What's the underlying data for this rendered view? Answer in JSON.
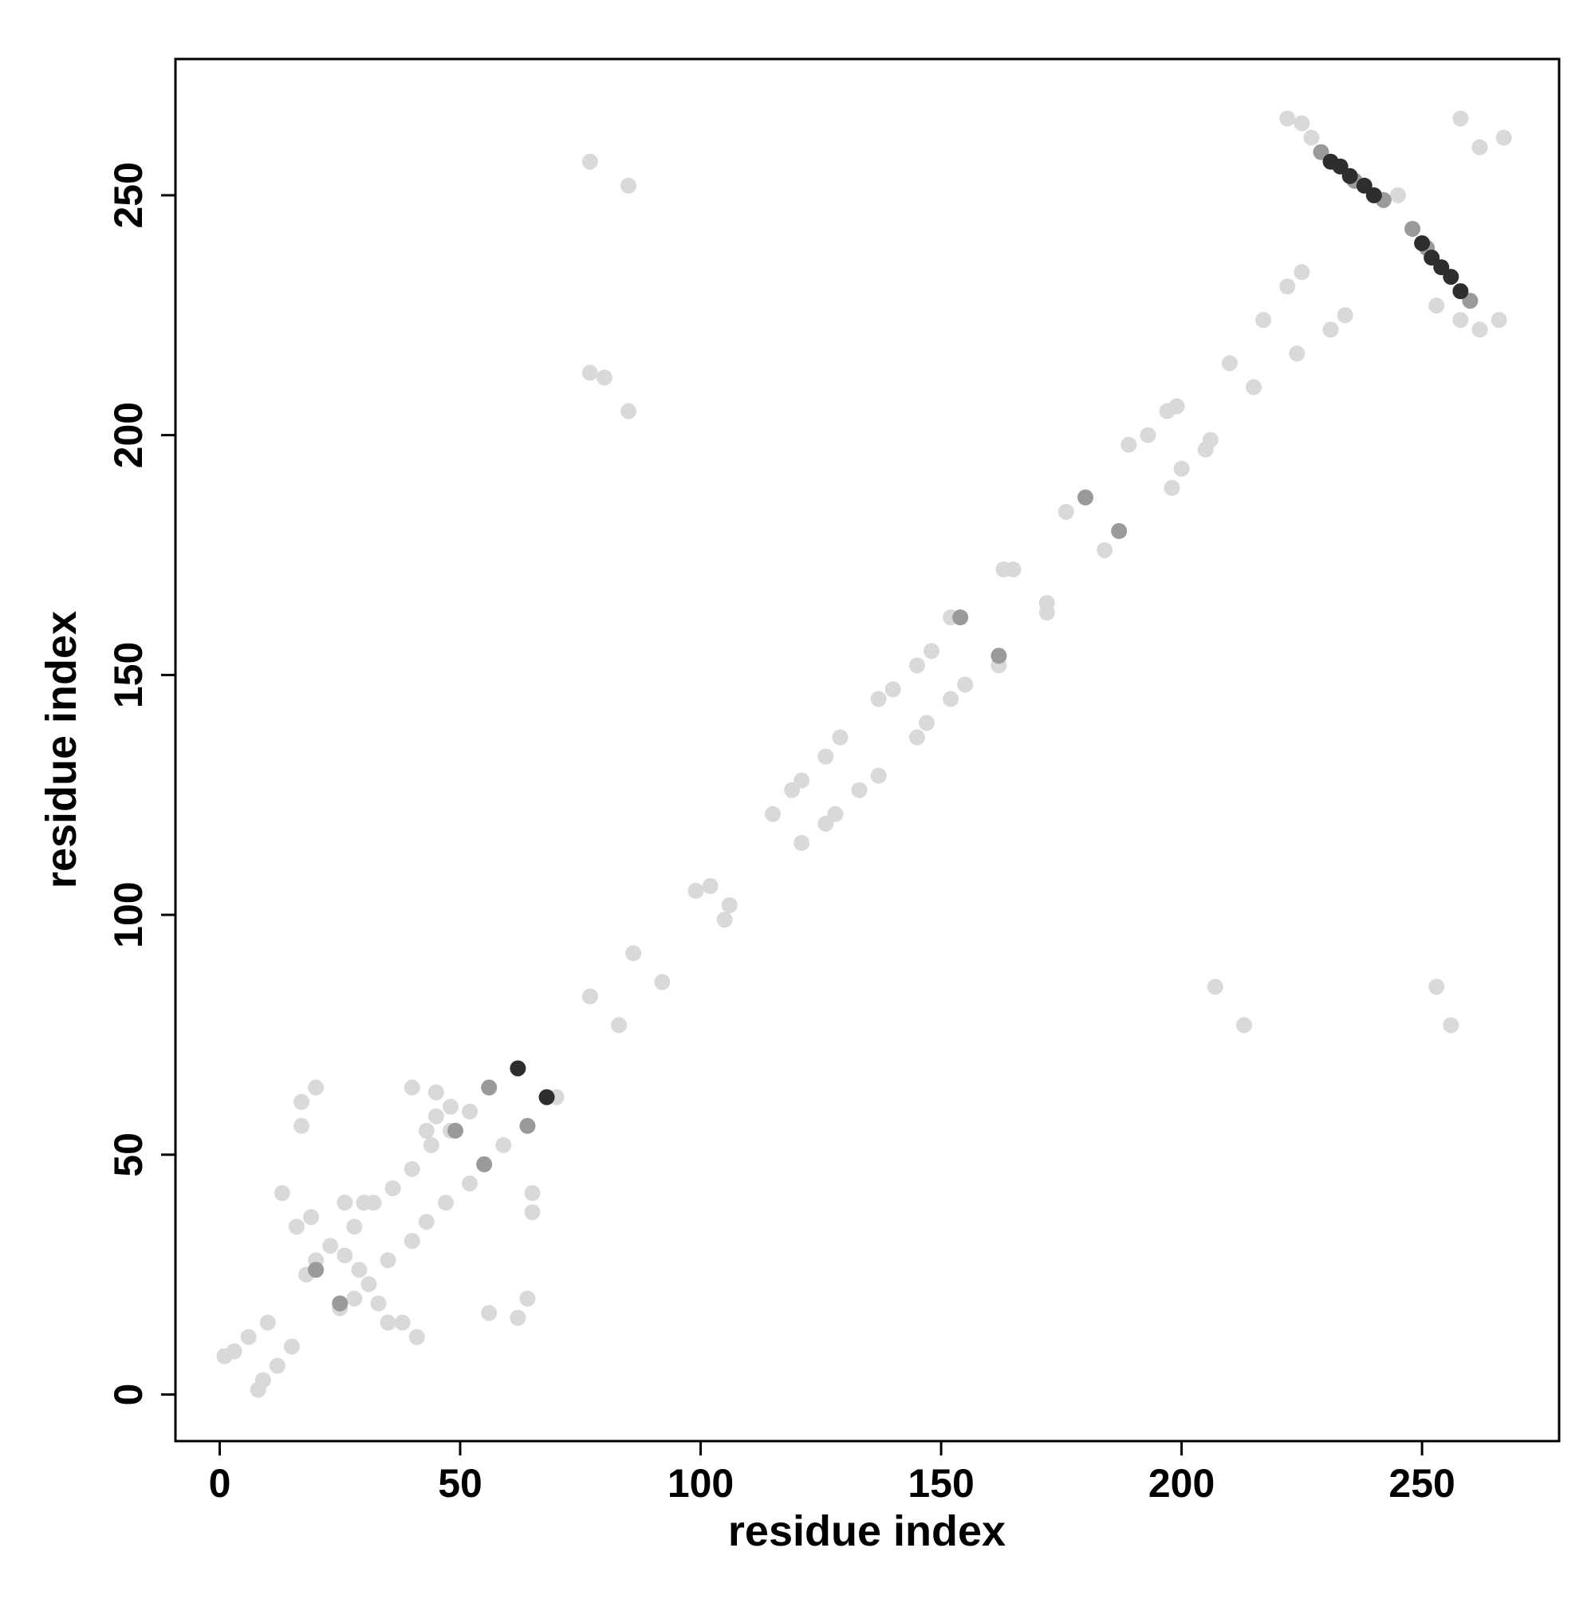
{
  "chart_data": {
    "type": "scatter",
    "x_label": "residue index",
    "y_label": "residue index",
    "xlim": [
      -9.2,
      278.5
    ],
    "ylim": [
      -9.7,
      278.4
    ],
    "xticks": [
      0,
      50,
      100,
      150,
      200,
      250
    ],
    "yticks": [
      0,
      50,
      100,
      150,
      200,
      250
    ],
    "series": [
      {
        "color": "#d9d9d9",
        "x": [
          3,
          6,
          10,
          18,
          20,
          23,
          28,
          32,
          36,
          40,
          44,
          48,
          52,
          77,
          86,
          99,
          102,
          115,
          119,
          121,
          126,
          129,
          137,
          140,
          145,
          148,
          152,
          163,
          165,
          176,
          189,
          193,
          197,
          199,
          210,
          217,
          222,
          225,
          9,
          12,
          15,
          25,
          28,
          31,
          35,
          40,
          43,
          47,
          52,
          55,
          59,
          83,
          92,
          105,
          106,
          121,
          126,
          128,
          133,
          137,
          145,
          147,
          152,
          155,
          162,
          172,
          172,
          184,
          198,
          200,
          205,
          206,
          215,
          224,
          231,
          234,
          17,
          20,
          17,
          13,
          16,
          19,
          26,
          30,
          40,
          45,
          48,
          56,
          62,
          64,
          65,
          65,
          38,
          41,
          35,
          33,
          43,
          45,
          77,
          85,
          77,
          80,
          85,
          207,
          213,
          253,
          256,
          222,
          225,
          227,
          245,
          258,
          262,
          267,
          266,
          262,
          258,
          253,
          8,
          1,
          70,
          26,
          29
        ],
        "y": [
          9,
          12,
          15,
          25,
          28,
          31,
          35,
          40,
          43,
          47,
          52,
          55,
          59,
          83,
          92,
          105,
          106,
          121,
          126,
          128,
          133,
          137,
          145,
          147,
          152,
          155,
          162,
          172,
          172,
          184,
          198,
          200,
          205,
          206,
          215,
          224,
          231,
          234,
          3,
          6,
          10,
          18,
          20,
          23,
          28,
          32,
          36,
          40,
          44,
          48,
          52,
          77,
          86,
          99,
          102,
          115,
          119,
          121,
          126,
          129,
          137,
          140,
          145,
          148,
          152,
          163,
          165,
          176,
          189,
          193,
          197,
          199,
          210,
          217,
          222,
          225,
          61,
          64,
          56,
          42,
          35,
          37,
          40,
          40,
          64,
          63,
          60,
          17,
          16,
          20,
          42,
          38,
          15,
          12,
          15,
          19,
          55,
          58,
          257,
          252,
          213,
          212,
          205,
          85,
          77,
          85,
          77,
          266,
          265,
          262,
          250,
          266,
          260,
          262,
          224,
          222,
          224,
          227,
          1,
          8,
          62,
          29,
          26
        ]
      },
      {
        "color": "#9a9a9a",
        "x": [
          56,
          64,
          49,
          55,
          154,
          162,
          180,
          187,
          229,
          242,
          248,
          260,
          236,
          251,
          25,
          20
        ],
        "y": [
          64,
          56,
          55,
          48,
          162,
          154,
          187,
          180,
          259,
          249,
          243,
          228,
          253,
          239,
          19,
          26
        ]
      },
      {
        "color": "#2e2e2e",
        "x": [
          62,
          68,
          231,
          233,
          235,
          238,
          240,
          250,
          252,
          254,
          256,
          258
        ],
        "y": [
          68,
          62,
          257,
          256,
          254,
          252,
          250,
          240,
          237,
          235,
          233,
          230
        ]
      }
    ]
  }
}
